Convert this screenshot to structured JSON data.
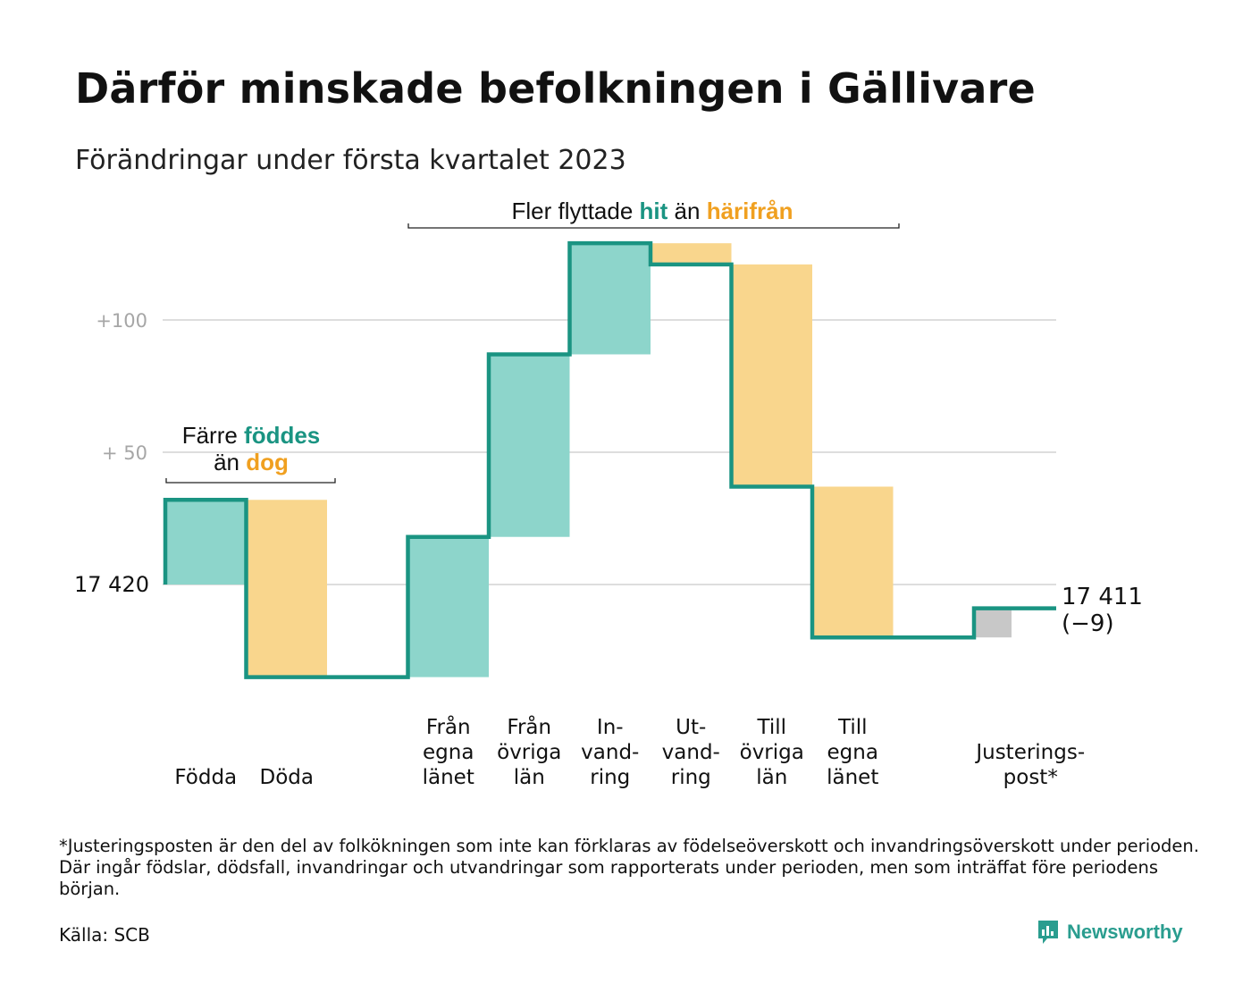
{
  "title": "Därför minskade befolkningen i Gällivare",
  "subtitle": "Förändringar under första kvartalet 2023",
  "colors": {
    "inflow": "#8dd5cb",
    "outflow": "#f9d68d",
    "adjustment": "#c8c8c8",
    "line": "#1a9482",
    "hit": "#1a9482",
    "harifran": "#f0a020",
    "grid": "#dddddd"
  },
  "annotations": {
    "births": {
      "prefix": "Färre ",
      "highlight1": "föddes",
      "line2_prefix": "än ",
      "highlight2": "dog"
    },
    "moves": {
      "prefix": "Fler flyttade ",
      "highlight1": "hit",
      "middle": " än ",
      "highlight2": "härifrån"
    }
  },
  "chart_data": {
    "type": "waterfall",
    "baseline_value": 17420,
    "start_label": "17 420",
    "end_label": "17 411",
    "end_change_label": "(−9)",
    "y_ticks": [
      {
        "value": 100,
        "label": "+100"
      },
      {
        "value": 50,
        "label": "+ 50"
      },
      {
        "value": 0,
        "label": ""
      }
    ],
    "ylim": [
      -40,
      130
    ],
    "grid": true,
    "steps": [
      {
        "label": [
          "Födda"
        ],
        "delta": 32,
        "kind": "inflow"
      },
      {
        "label": [
          "Döda"
        ],
        "delta": -67,
        "kind": "outflow"
      },
      {
        "label": [],
        "delta": 0,
        "kind": "gap"
      },
      {
        "label": [
          "Från",
          "egna",
          "länet"
        ],
        "delta": 53,
        "kind": "inflow"
      },
      {
        "label": [
          "Från",
          "övriga",
          "län"
        ],
        "delta": 69,
        "kind": "inflow"
      },
      {
        "label": [
          "In-",
          "vand-",
          "ring"
        ],
        "delta": 42,
        "kind": "inflow"
      },
      {
        "label": [
          "Ut-",
          "vand-",
          "ring"
        ],
        "delta": -8,
        "kind": "outflow"
      },
      {
        "label": [
          "Till",
          "övriga",
          "län"
        ],
        "delta": -84,
        "kind": "outflow"
      },
      {
        "label": [
          "Till",
          "egna",
          "länet"
        ],
        "delta": -57,
        "kind": "outflow"
      },
      {
        "label": [],
        "delta": 0,
        "kind": "gap"
      },
      {
        "label": [
          "Justerings-",
          "post*"
        ],
        "delta": 11,
        "kind": "adjustment"
      }
    ],
    "final_change": -9
  },
  "footnote": "*Justeringsposten är den del av folkökningen som inte kan förklaras av födelseöverskott och invandringsöverskott under perioden. Där ingår födslar, dödsfall, invandringar och utvandringar som rapporterats under perioden, men som inträffat före periodens början.",
  "source": "Källa: SCB",
  "brand": {
    "name": "Newsworthy",
    "logo_icon": "newsworthy-logo-icon"
  }
}
